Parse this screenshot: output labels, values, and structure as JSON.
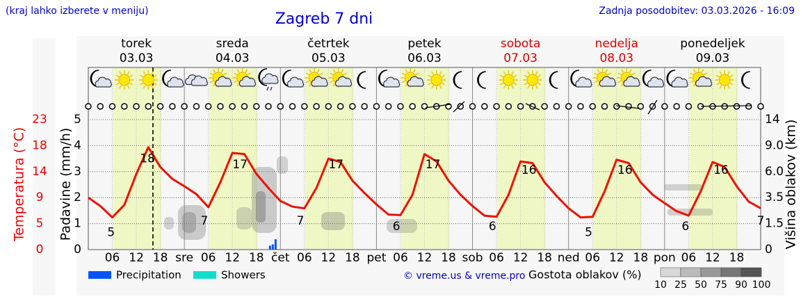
{
  "chart_data": {
    "type": "line",
    "title": "Zagreb 7 dni",
    "menu_hint": "(kraj lahko izberete v meniju)",
    "updated": "Zadnja posodobitev: 03.03.2026 - 16:09",
    "credit": "© vreme.us & vreme.pro",
    "y_label": "Padavine (mm/h)",
    "temp_label": "Temperatura (°C)",
    "y2_label": "Višina oblakov (km)",
    "xlim": [
      0,
      168
    ],
    "xticks": [
      {
        "value": 6,
        "label": "06"
      },
      12,
      18,
      {
        "value": 24,
        "label": "sre"
      },
      {
        "value": 30,
        "label": "06"
      },
      {
        "value": 36,
        "label": "12"
      },
      {
        "value": 42,
        "label": "18"
      },
      {
        "value": 48,
        "label": "čet"
      },
      {
        "value": 54,
        "label": "06"
      },
      {
        "value": 60,
        "label": "12"
      },
      {
        "value": 66,
        "label": "18"
      },
      {
        "value": 72,
        "label": "pet"
      },
      {
        "value": 78,
        "label": "06"
      },
      {
        "value": 84,
        "label": "12"
      },
      {
        "value": 90,
        "label": "18"
      },
      {
        "value": 96,
        "label": "sob"
      },
      {
        "value": 102,
        "label": "06"
      },
      {
        "value": 108,
        "label": "12"
      },
      {
        "value": 114,
        "label": "18"
      },
      {
        "value": 120,
        "label": "ned"
      },
      {
        "value": 126,
        "label": "06"
      },
      {
        "value": 132,
        "label": "12"
      },
      {
        "value": 138,
        "label": "18"
      },
      {
        "value": 144,
        "label": "pon"
      },
      {
        "value": 150,
        "label": "06"
      },
      {
        "value": 156,
        "label": "12"
      },
      {
        "value": 162,
        "label": "18"
      }
    ],
    "ylim": [
      0,
      5
    ],
    "yticks": [
      0,
      1,
      2,
      3,
      4,
      5
    ],
    "temp_lim": [
      0,
      23
    ],
    "temp_ticks": [
      0,
      {
        "value": 4.6,
        "label": "5"
      },
      {
        "value": 9.2,
        "label": "9"
      },
      {
        "value": 13.8,
        "label": "14"
      },
      {
        "value": 18.4,
        "label": "18"
      },
      23
    ],
    "temp_color": "#ee0000",
    "y2ticks": [
      0,
      1.5,
      3.5,
      {
        "value": 6,
        "label": "6.0"
      },
      {
        "value": 9,
        "label": "9.0"
      },
      14
    ],
    "grid": true,
    "days": [
      {
        "name": "torek",
        "date": "03.03",
        "color": "#000000"
      },
      {
        "name": "sreda",
        "date": "04.03",
        "color": "#000000"
      },
      {
        "name": "četrtek",
        "date": "05.03",
        "color": "#000000"
      },
      {
        "name": "petek",
        "date": "06.03",
        "color": "#000000"
      },
      {
        "name": "sobota",
        "date": "07.03",
        "color": "#dd0000"
      },
      {
        "name": "nedelja",
        "date": "08.03",
        "color": "#dd0000"
      },
      {
        "name": "ponedeljek",
        "date": "09.03",
        "color": "#000000"
      }
    ],
    "daylight": [
      6.2,
      18.3
    ],
    "now": 16.15,
    "temperature": {
      "color": "#ee1100",
      "x": [
        0,
        3,
        6,
        9,
        12,
        15,
        18,
        21,
        24,
        27,
        30,
        33,
        36,
        39,
        42,
        45,
        48,
        51,
        54,
        57,
        60,
        63,
        66,
        69,
        72,
        75,
        78,
        81,
        84,
        87,
        90,
        93,
        96,
        99,
        102,
        105,
        108,
        111,
        114,
        117,
        120,
        123,
        126,
        129,
        132,
        135,
        138,
        141,
        144,
        147,
        150,
        153,
        156,
        159,
        162,
        165,
        168
      ],
      "values": [
        9.2,
        7.7,
        5.7,
        7.9,
        13.4,
        18.1,
        14.6,
        12.5,
        11.2,
        9.8,
        7.5,
        11.9,
        17.1,
        16.9,
        13.4,
        10.9,
        8.6,
        7.6,
        7.3,
        10.9,
        16.1,
        15.5,
        12.2,
        10.0,
        8.0,
        6.2,
        6.1,
        9.7,
        16.9,
        15.6,
        12.2,
        9.7,
        7.7,
        6.0,
        5.8,
        9.7,
        15.6,
        15.3,
        11.9,
        9.5,
        7.3,
        5.7,
        5.8,
        10.3,
        15.9,
        15.3,
        11.9,
        9.7,
        8.2,
        6.8,
        6.0,
        10.3,
        15.5,
        14.6,
        11.2,
        8.5,
        7.3
      ]
    },
    "temp_labels": [
      {
        "x": 5.7,
        "value": 5
      },
      {
        "x": 14.8,
        "value": 18
      },
      {
        "x": 29.0,
        "value": 7
      },
      {
        "x": 37.9,
        "value": 17
      },
      {
        "x": 53.0,
        "value": 7
      },
      {
        "x": 61.9,
        "value": 17
      },
      {
        "x": 77.0,
        "value": 6
      },
      {
        "x": 86.1,
        "value": 17
      },
      {
        "x": 101.0,
        "value": 6
      },
      {
        "x": 110.1,
        "value": 16
      },
      {
        "x": 125.0,
        "value": 5
      },
      {
        "x": 134.1,
        "value": 16
      },
      {
        "x": 149.2,
        "value": 6
      },
      {
        "x": 158.1,
        "value": 16
      },
      {
        "x": 168.0,
        "value": 7
      }
    ],
    "precipitation": {
      "name": "Precipitation",
      "color": "#0055ff",
      "x": [
        45.4,
        46.1,
        46.8
      ],
      "values": [
        0.15,
        0.2,
        0.4
      ]
    },
    "showers": {
      "name": "Showers",
      "color": "#11ddcc"
    },
    "cloud_legend": {
      "title": "Gostota oblakov (%)",
      "levels": [
        10,
        25,
        50,
        75,
        90,
        100
      ],
      "colors": [
        "#d8d8d8",
        "#bbbbbb",
        "#999999",
        "#777777",
        "#555555"
      ]
    }
  }
}
